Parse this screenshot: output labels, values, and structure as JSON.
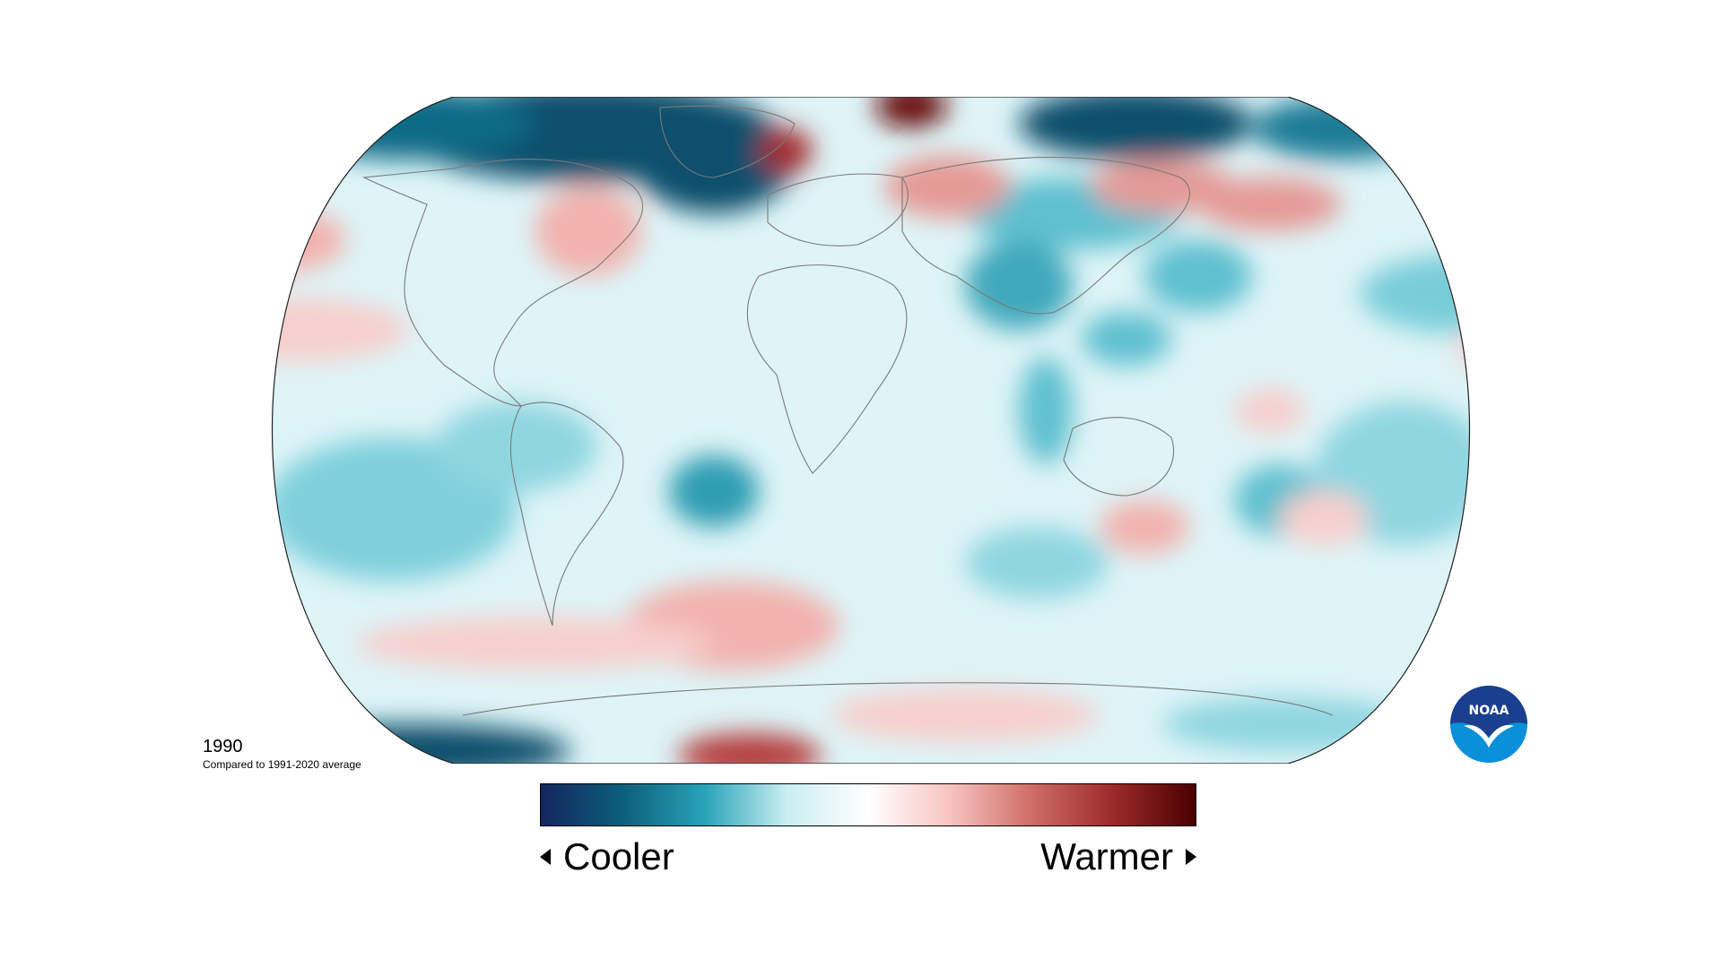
{
  "map": {
    "year": "1990",
    "comparison": "Compared to 1991-2020 average",
    "legend": {
      "cooler_label": "Cooler",
      "warmer_label": "Warmer",
      "colors": [
        "#14265e",
        "#0c5f7c",
        "#29a3b8",
        "#c9eef2",
        "#ffffff",
        "#f7c4c0",
        "#cf6d66",
        "#9b2a2a",
        "#4a0000"
      ]
    },
    "palette": {
      "base": "#def4f7",
      "cool_dark": "#0b4f6c",
      "cool": "#5fc0cf",
      "warm": "#f2b2ad",
      "warm_dark": "#a32a2a",
      "coast": "#7a7a7a",
      "border": "#222222"
    },
    "logo": {
      "text": "NOAA",
      "colors": [
        "#1a3f8e",
        "#0a8fd9",
        "#ffffff"
      ]
    }
  }
}
